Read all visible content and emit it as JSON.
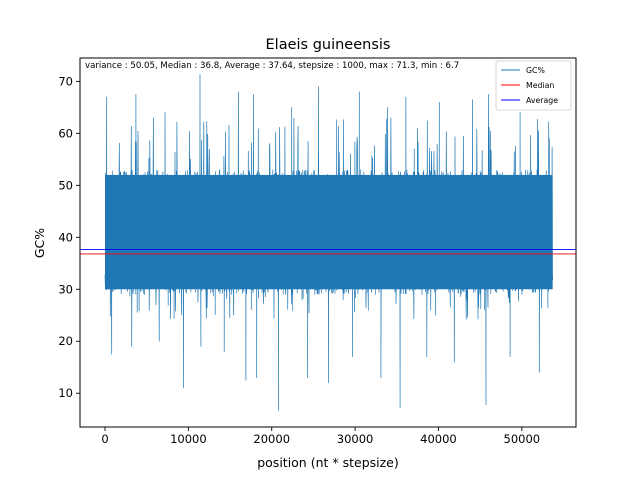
{
  "chart_data": {
    "type": "line",
    "title": "Elaeis guineensis",
    "xlabel": "position (nt * stepsize)",
    "ylabel": "GC%",
    "annotation": "variance : 50.05, Median : 36.8, Average : 37.64, stepsize : 1000, max : 71.3, min : 6.7",
    "xlim": [
      -3000,
      56500
    ],
    "ylim": [
      3.5,
      74.5
    ],
    "x_ticks": [
      0,
      10000,
      20000,
      30000,
      40000,
      50000
    ],
    "y_ticks": [
      10,
      20,
      30,
      40,
      50,
      60,
      70
    ],
    "grid": false,
    "legend_position": "top-right",
    "colors": {
      "gc": "#1f77b4",
      "median": "#ff0000",
      "average": "#0000ff"
    },
    "stats": {
      "variance": 50.05,
      "median": 36.8,
      "average": 37.64,
      "stepsize": 1000,
      "max": 71.3,
      "min": 6.7
    },
    "series": [
      {
        "name": "GC%",
        "x_start": 0,
        "x_end": 53700,
        "core_low": 29,
        "core_high": 53,
        "lower_extremes": [
          [
            800,
            17.5
          ],
          [
            3200,
            19
          ],
          [
            6500,
            20
          ],
          [
            9400,
            11
          ],
          [
            11500,
            19
          ],
          [
            14300,
            18
          ],
          [
            16900,
            12.5
          ],
          [
            18200,
            13
          ],
          [
            20800,
            6.7
          ],
          [
            24300,
            13
          ],
          [
            26800,
            12
          ],
          [
            29700,
            17
          ],
          [
            33100,
            13
          ],
          [
            35400,
            7.2
          ],
          [
            38600,
            17
          ],
          [
            41900,
            16
          ],
          [
            45700,
            7.8
          ],
          [
            48600,
            17
          ],
          [
            52100,
            14
          ]
        ],
        "upper_extremes": [
          [
            200,
            67
          ],
          [
            3700,
            67.5
          ],
          [
            7200,
            64
          ],
          [
            11400,
            71.3
          ],
          [
            16000,
            68
          ],
          [
            17800,
            67.5
          ],
          [
            22400,
            65
          ],
          [
            25600,
            69
          ],
          [
            30500,
            68
          ],
          [
            33900,
            65
          ],
          [
            36100,
            67
          ],
          [
            40100,
            66
          ],
          [
            44100,
            66.5
          ],
          [
            46000,
            67.5
          ],
          [
            49800,
            64
          ],
          [
            53300,
            59
          ]
        ]
      },
      {
        "name": "Median",
        "value": 36.8
      },
      {
        "name": "Average",
        "value": 37.64
      }
    ]
  }
}
